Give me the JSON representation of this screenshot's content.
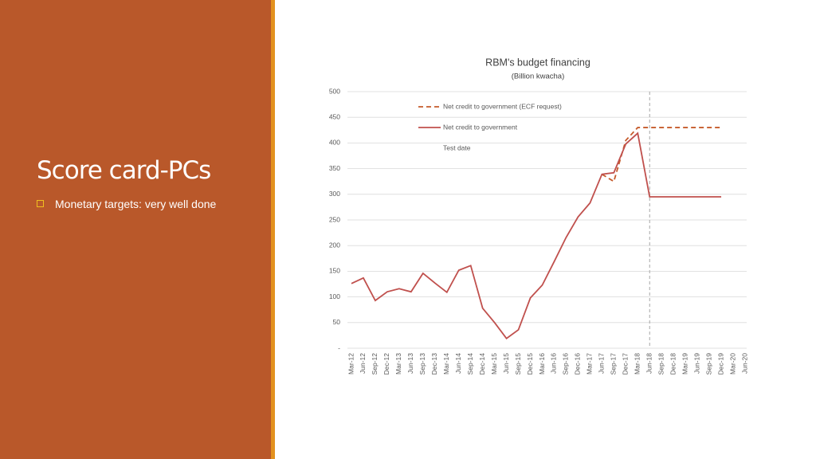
{
  "slide": {
    "title": "Score card-PCs",
    "bullets": [
      "Monetary targets: very well done"
    ]
  },
  "chart_data": {
    "type": "line",
    "title": "RBM's budget financing",
    "subtitle": "(Billion kwacha)",
    "categories": [
      "Mar-12",
      "Jun-12",
      "Sep-12",
      "Dec-12",
      "Mar-13",
      "Jun-13",
      "Sep-13",
      "Dec-13",
      "Mar-14",
      "Jun-14",
      "Sep-14",
      "Dec-14",
      "Mar-15",
      "Jun-15",
      "Sep-15",
      "Dec-15",
      "Mar-16",
      "Jun-16",
      "Sep-16",
      "Dec-16",
      "Mar-17",
      "Jun-17",
      "Sep-17",
      "Dec-17",
      "Mar-18",
      "Jun-18",
      "Sep-18",
      "Dec-18",
      "Mar-19",
      "Jun-19",
      "Sep-19",
      "Dec-19",
      "Mar-20",
      "Jun-20"
    ],
    "series": [
      {
        "name": "Net credit to government (ECF request)",
        "color": "#c65b2b",
        "dashed": true,
        "values": [
          null,
          null,
          null,
          null,
          null,
          null,
          null,
          null,
          null,
          null,
          null,
          null,
          null,
          null,
          null,
          null,
          null,
          null,
          null,
          null,
          null,
          339,
          325,
          405,
          430,
          430,
          430,
          430,
          430,
          430,
          430,
          430,
          null,
          null
        ]
      },
      {
        "name": "Net credit to government",
        "color": "#c0504d",
        "dashed": false,
        "values": [
          126,
          137,
          93,
          110,
          116,
          110,
          146,
          127,
          109,
          152,
          161,
          78,
          50,
          19,
          36,
          98,
          123,
          169,
          216,
          256,
          283,
          339,
          342,
          398,
          419,
          295,
          295,
          295,
          295,
          295,
          295,
          295,
          null,
          null
        ]
      }
    ],
    "vline": {
      "name": "Test date",
      "category": "Jun-18",
      "color": "#a6a6a6"
    },
    "ylim": [
      0,
      500
    ],
    "yticks": [
      {
        "value": 0,
        "label": "-"
      },
      50,
      100,
      150,
      200,
      250,
      300,
      350,
      400,
      450,
      500
    ],
    "grid": true
  }
}
